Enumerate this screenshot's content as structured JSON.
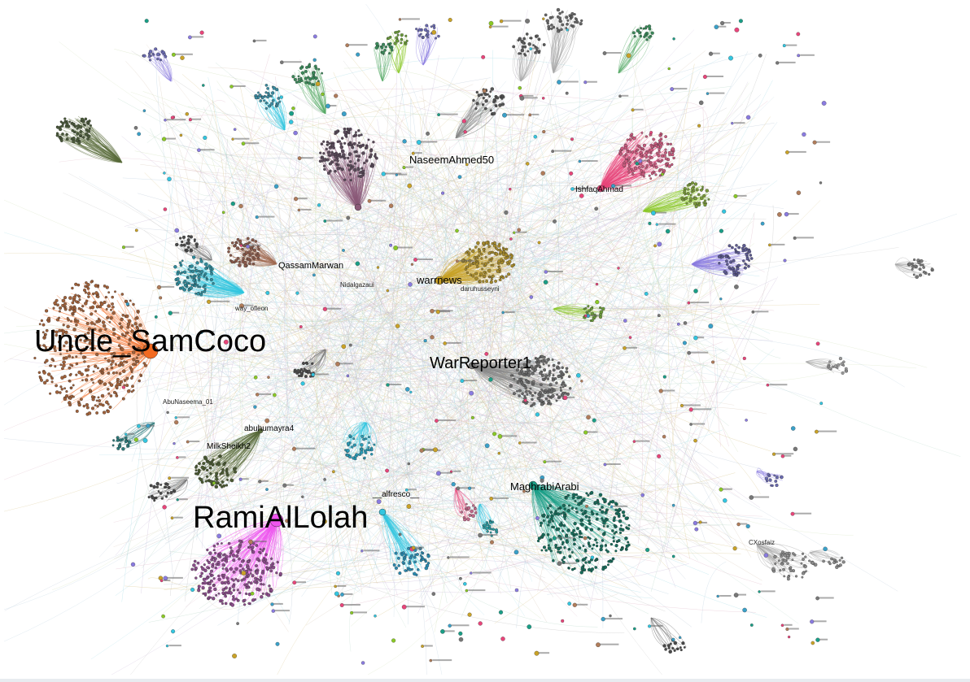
{
  "graph": {
    "hub_labels": [
      {
        "text": "Uncle_SamCoco",
        "size": "xl",
        "color": "#f26a21"
      },
      {
        "text": "RamiAlLolah",
        "size": "xl",
        "color": "#ee55ee"
      },
      {
        "text": "WarReporter1",
        "size": "l",
        "color": "#555555"
      },
      {
        "text": "NaseemAhmed50",
        "size": "m",
        "color": "#888888"
      },
      {
        "text": "warrnews",
        "size": "m",
        "color": "#c9a227"
      },
      {
        "text": "MaghrabiArabi",
        "size": "m",
        "color": "#1a9e86"
      },
      {
        "text": "QassamMarwan",
        "size": "m",
        "color": "#b07c5a"
      },
      {
        "text": "MilkSheikh2",
        "size": "s",
        "color": "#5a6b3a"
      },
      {
        "text": "abuhumayra4",
        "size": "s",
        "color": "#5a6b3a"
      },
      {
        "text": "__alfresco__",
        "size": "s",
        "color": "#33bbcc"
      },
      {
        "text": "IshfaqAhmad",
        "size": "s",
        "color": "#e8457a"
      },
      {
        "text": "daruhusseyni",
        "size": "s",
        "color": "#cc4477"
      },
      {
        "text": "Nidalgazaui",
        "size": "s",
        "color": "#c9a227"
      },
      {
        "text": "way_ofleon",
        "size": "s",
        "color": "#3aa0c8"
      },
      {
        "text": "AbuNaseema_01",
        "size": "xs",
        "color": "#2c7a7a"
      },
      {
        "text": "CXosfaiz",
        "size": "xs",
        "color": "#999999"
      }
    ],
    "colors": {
      "orange": "#f26a21",
      "magenta": "#ee55ee",
      "pink": "#e8457a",
      "teal": "#1a9e86",
      "cyan": "#33c6e0",
      "gold": "#c9a227",
      "green": "#8ac926",
      "olive": "#5a6b3a",
      "lavender": "#8a7be0",
      "grey": "#999999"
    }
  }
}
